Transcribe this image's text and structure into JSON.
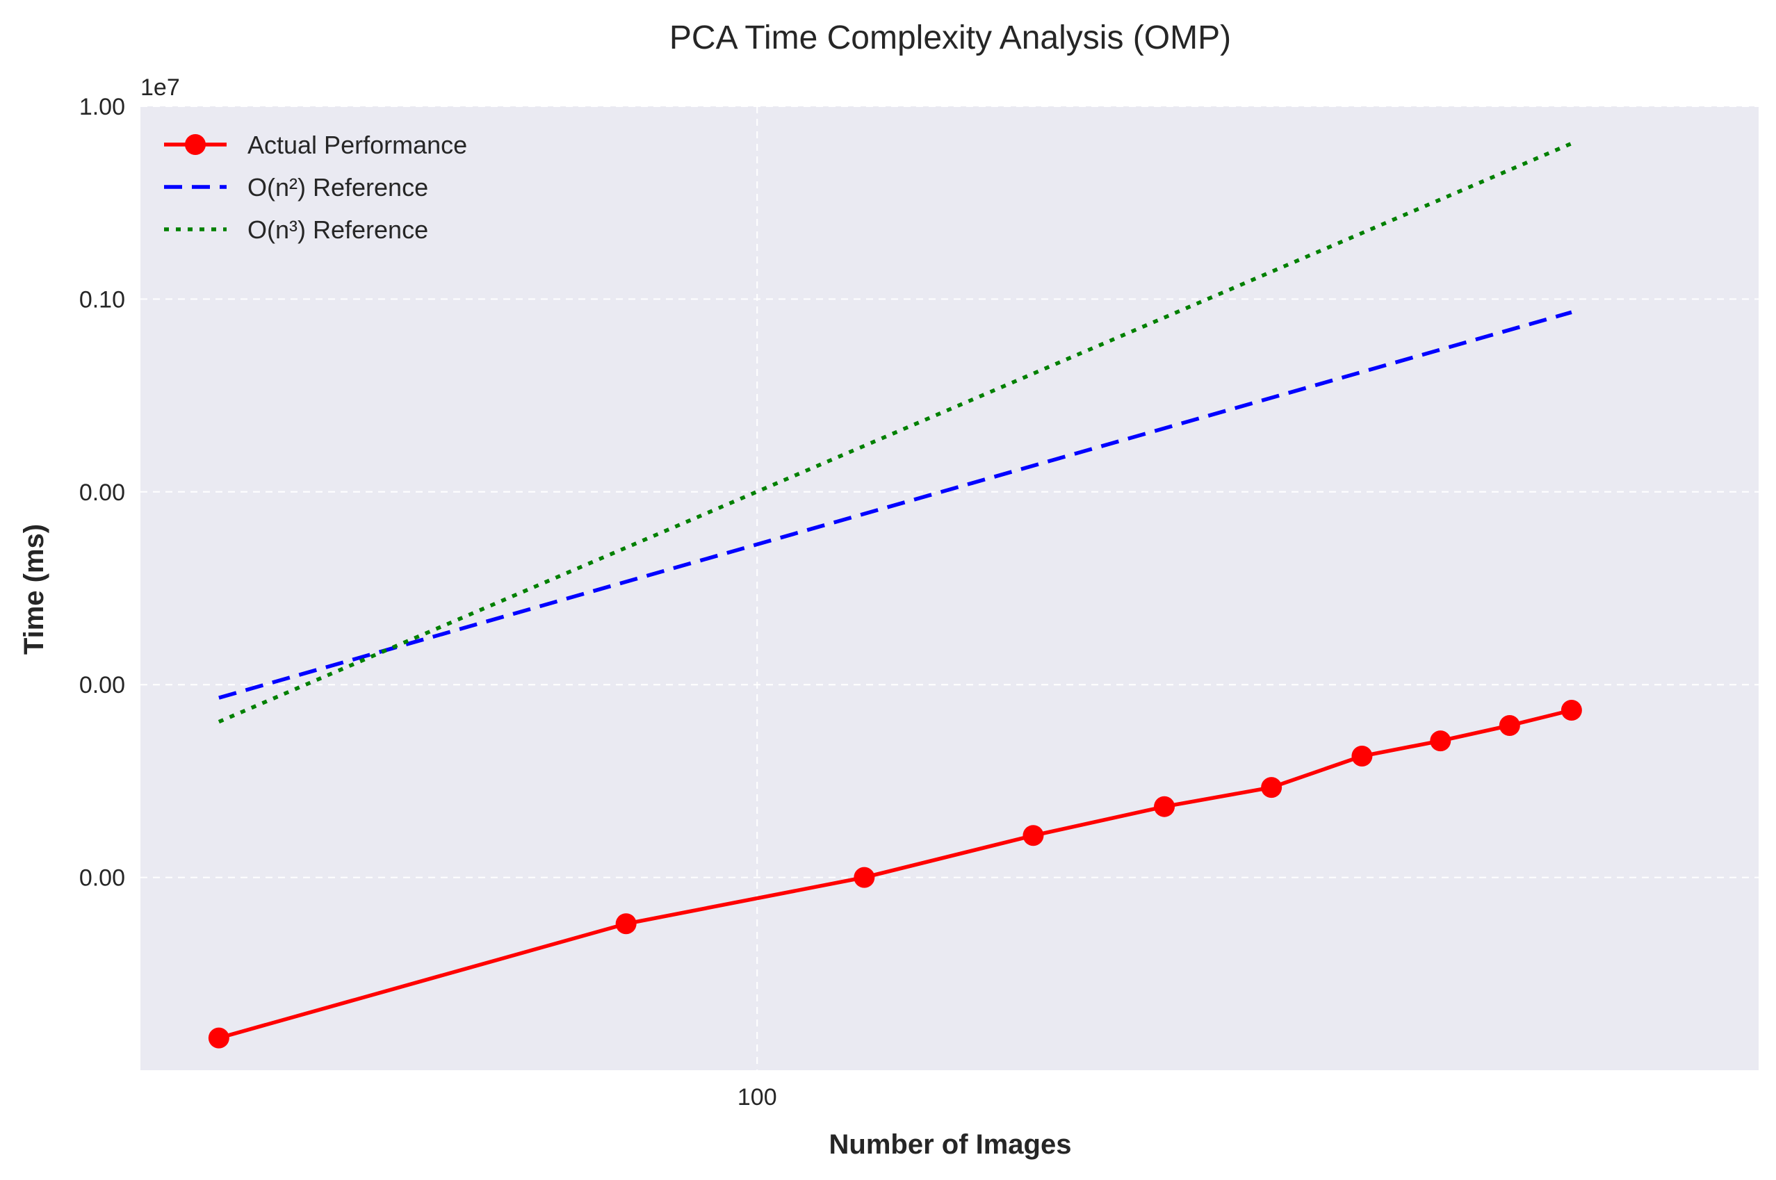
{
  "chart_data": {
    "type": "line",
    "title": "PCA Time Complexity Analysis (OMP)",
    "xlabel": "Number of Images",
    "ylabel": "Time (ms)",
    "x_scale": "log",
    "y_scale": "log",
    "y_offset_label": "1e7",
    "xlim": [
      35,
      550
    ],
    "ylim": [
      1e-05,
      1.0
    ],
    "x_ticks": [
      {
        "value": 100,
        "label": "100"
      }
    ],
    "y_ticks": [
      {
        "value": 0.0001,
        "label": "0.00"
      },
      {
        "value": 0.001,
        "label": "0.00"
      },
      {
        "value": 0.01,
        "label": "0.00"
      },
      {
        "value": 0.1,
        "label": "0.10"
      },
      {
        "value": 1.0,
        "label": "1.00"
      }
    ],
    "grid": true,
    "legend_position": "top-left",
    "series": [
      {
        "name": "Actual Performance",
        "color": "#ff0000",
        "style": "solid",
        "marker": "circle",
        "x": [
          40,
          80,
          120,
          160,
          200,
          240,
          280,
          320,
          360,
          400
        ],
        "y": [
          1.47e-05,
          5.75e-05,
          0.0001,
          0.000165,
          0.000233,
          0.000293,
          0.000426,
          0.000511,
          0.000614,
          0.000737
        ]
      },
      {
        "name": "O(n²) Reference",
        "color": "#0000ff",
        "style": "dashed",
        "x": [
          40,
          400
        ],
        "y": [
          0.000855,
          0.0855
        ]
      },
      {
        "name": "O(n³) Reference",
        "color": "#008000",
        "style": "dotted",
        "x": [
          40,
          400
        ],
        "y": [
          0.000642,
          0.642
        ]
      }
    ]
  }
}
